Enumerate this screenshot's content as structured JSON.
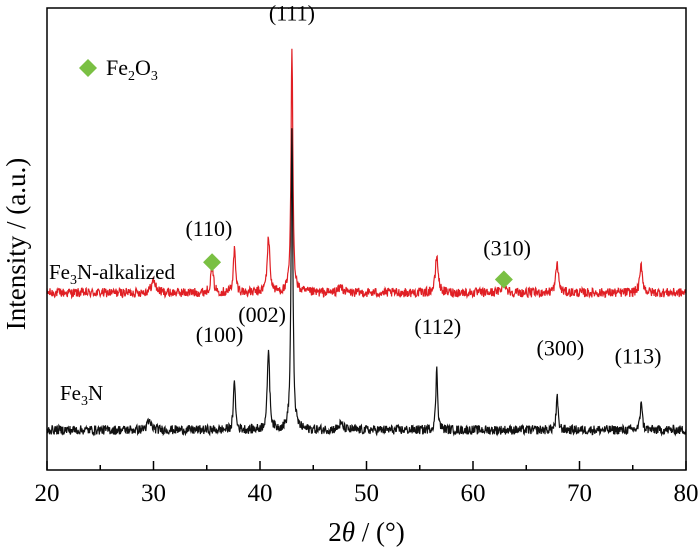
{
  "chart_data": {
    "type": "line",
    "title": "",
    "xlabel": "2θ / (°)",
    "xlabel_parts": {
      "prefix": "2",
      "symbol": "θ",
      "suffix": " / (°)"
    },
    "ylabel": "Intensity / (a.u.)",
    "xlim": [
      20,
      80
    ],
    "xticks": [
      20,
      30,
      40,
      50,
      60,
      70,
      80
    ],
    "y_range": [
      0,
      1.06
    ],
    "y_ticks_shown": false,
    "legend": [
      {
        "marker": "diamond",
        "color": "#7ac043",
        "label": "Fe2O3",
        "label_parts": [
          "Fe",
          "2",
          "O",
          "3"
        ]
      }
    ],
    "series": [
      {
        "name": "Fe3N-alkalized",
        "label_parts": [
          "Fe",
          "3",
          "N-alkalized"
        ],
        "color": "#e01f24",
        "baseline": 0.35,
        "peaks": [
          {
            "x": 30.0,
            "height": 0.03,
            "width": 0.5
          },
          {
            "x": 35.5,
            "height": 0.065,
            "width": 0.3
          },
          {
            "x": 37.6,
            "height": 0.11,
            "width": 0.25
          },
          {
            "x": 40.8,
            "height": 0.14,
            "width": 0.3
          },
          {
            "x": 43.0,
            "height": 0.625,
            "width": 0.2
          },
          {
            "x": 47.6,
            "height": 0.015,
            "width": 0.5
          },
          {
            "x": 56.6,
            "height": 0.095,
            "width": 0.3
          },
          {
            "x": 62.9,
            "height": 0.03,
            "width": 0.4
          },
          {
            "x": 67.9,
            "height": 0.075,
            "width": 0.3
          },
          {
            "x": 75.8,
            "height": 0.07,
            "width": 0.3
          }
        ],
        "markers": [
          {
            "x": 35.5,
            "y": 0.428
          },
          {
            "x": 62.9,
            "y": 0.384
          }
        ]
      },
      {
        "name": "Fe3N",
        "label_parts": [
          "Fe",
          "3",
          "N"
        ],
        "color": "#111111",
        "baseline": 0.0,
        "peaks": [
          {
            "x": 29.6,
            "height": 0.02,
            "width": 0.5
          },
          {
            "x": 37.6,
            "height": 0.135,
            "width": 0.2
          },
          {
            "x": 40.8,
            "height": 0.21,
            "width": 0.25
          },
          {
            "x": 43.0,
            "height": 0.77,
            "width": 0.2
          },
          {
            "x": 47.6,
            "height": 0.015,
            "width": 0.5
          },
          {
            "x": 56.6,
            "height": 0.16,
            "width": 0.2
          },
          {
            "x": 67.9,
            "height": 0.085,
            "width": 0.2
          },
          {
            "x": 75.8,
            "height": 0.08,
            "width": 0.2
          }
        ]
      }
    ],
    "annotations": [
      {
        "text": "(111)",
        "x": 43.0,
        "y": 1.045
      },
      {
        "text": "(110)",
        "x": 35.2,
        "y": 0.495
      },
      {
        "text": "(310)",
        "x": 63.2,
        "y": 0.445
      },
      {
        "text": "(002)",
        "x": 40.2,
        "y": 0.275
      },
      {
        "text": "(100)",
        "x": 36.2,
        "y": 0.225
      },
      {
        "text": "(112)",
        "x": 56.7,
        "y": 0.245
      },
      {
        "text": "(300)",
        "x": 68.2,
        "y": 0.19
      },
      {
        "text": "(113)",
        "x": 75.5,
        "y": 0.17
      }
    ]
  }
}
